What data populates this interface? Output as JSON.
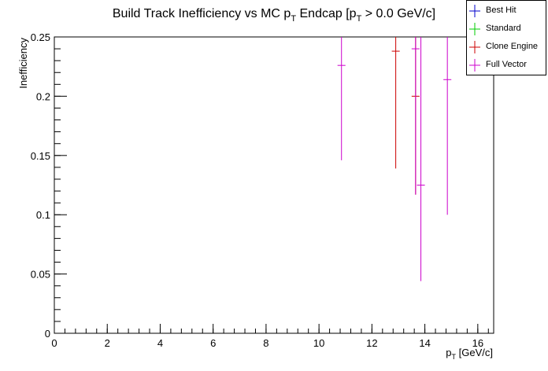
{
  "chart_data": {
    "type": "scatter",
    "title": "Build Track Inefficiency vs MC p",
    "title_sub": "T",
    "title_rest": " Endcap [p",
    "title_sub2": "T",
    "title_end": " > 0.0 GeV/c]",
    "xlabel": "p",
    "xlabel_sub": "T",
    "xlabel_rest": " [GeV/c]",
    "ylabel": "Inefficiency",
    "xlim": [
      0,
      16.6
    ],
    "ylim": [
      0,
      0.25
    ],
    "x_ticks": [
      0,
      2,
      4,
      6,
      8,
      10,
      12,
      14,
      16
    ],
    "x_tick_labels": [
      "0",
      "2",
      "4",
      "6",
      "8",
      "10",
      "12",
      "14",
      "16"
    ],
    "y_ticks": [
      0,
      0.05,
      0.1,
      0.15,
      0.2,
      0.25
    ],
    "y_tick_labels": [
      "0",
      "0.05",
      "0.1",
      "0.15",
      "0.2",
      "0.25"
    ],
    "grid": false,
    "legend_position": "top-right",
    "series": [
      {
        "name": "Best Hit",
        "color": "#0000cc",
        "points": []
      },
      {
        "name": "Standard",
        "color": "#00cc00",
        "points": []
      },
      {
        "name": "Clone Engine",
        "color": "#cc0000",
        "points": [
          {
            "x": 12.9,
            "y": 0.238,
            "ylo": 0.139,
            "yhi": 0.25,
            "xerr": 0.15
          },
          {
            "x": 13.65,
            "y": 0.2,
            "ylo": 0.117,
            "yhi": 0.25,
            "xerr": 0.15
          }
        ]
      },
      {
        "name": "Full Vector",
        "color": "#cc00cc",
        "points": [
          {
            "x": 10.85,
            "y": 0.226,
            "ylo": 0.146,
            "yhi": 0.25,
            "xerr": 0.15
          },
          {
            "x": 13.65,
            "y": 0.24,
            "ylo": 0.117,
            "yhi": 0.25,
            "xerr": 0.15
          },
          {
            "x": 13.85,
            "y": 0.125,
            "ylo": 0.044,
            "yhi": 0.25,
            "xerr": 0.15
          },
          {
            "x": 14.85,
            "y": 0.214,
            "ylo": 0.1,
            "yhi": 0.25,
            "xerr": 0.15
          }
        ]
      }
    ]
  }
}
